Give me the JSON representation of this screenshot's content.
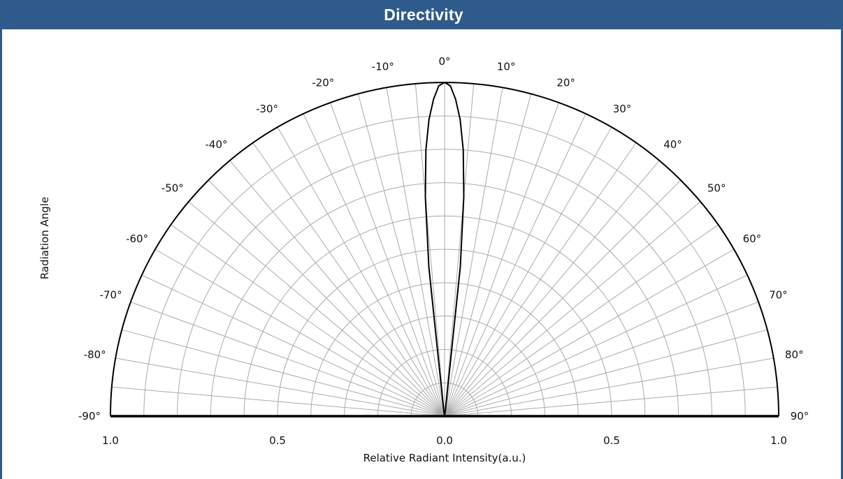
{
  "header": {
    "title": "Directivity"
  },
  "chart_data": {
    "type": "polar",
    "title": "",
    "xlabel": "Relative Radiant Intensity(a.u.)",
    "ylabel": "Radiation Angle",
    "angle_ticks": [
      -90,
      -80,
      -70,
      -60,
      -50,
      -40,
      -30,
      -20,
      -10,
      0,
      10,
      20,
      30,
      40,
      50,
      60,
      70,
      80,
      90
    ],
    "angle_tick_labels": [
      "-90°",
      "-80°",
      "-70°",
      "-60°",
      "-50°",
      "-40°",
      "-30°",
      "-20°",
      "-10°",
      "0°",
      "10°",
      "20°",
      "30°",
      "40°",
      "50°",
      "60°",
      "70°",
      "80°",
      "90°"
    ],
    "radial_tick_labels": [
      "1.0",
      "0.5",
      "0.0",
      "0.5",
      "1.0"
    ],
    "radial_range": [
      0,
      1
    ],
    "radial_gridlines": [
      0.1,
      0.2,
      0.3,
      0.4,
      0.5,
      0.6,
      0.7,
      0.8,
      0.9,
      1.0
    ],
    "angle_gridline_step_deg": 5,
    "grid": true,
    "series": [
      {
        "angles_deg": [
          -90,
          -50,
          -30,
          -20,
          -15,
          -10,
          -8,
          -6,
          -5,
          -4,
          -3,
          -2,
          -1,
          0,
          1,
          2,
          3,
          4,
          5,
          6,
          8,
          10,
          15,
          20,
          30,
          50,
          90
        ],
        "values": [
          0,
          0,
          0,
          0,
          0,
          0,
          0.02,
          0.45,
          0.66,
          0.8,
          0.89,
          0.95,
          0.99,
          1.0,
          0.99,
          0.95,
          0.89,
          0.8,
          0.66,
          0.45,
          0.02,
          0,
          0,
          0,
          0,
          0,
          0
        ]
      }
    ],
    "colors": {
      "grid": "#aaaaaa",
      "series": "#000000",
      "outline": "#000000",
      "header": "#2f5a8c"
    }
  }
}
